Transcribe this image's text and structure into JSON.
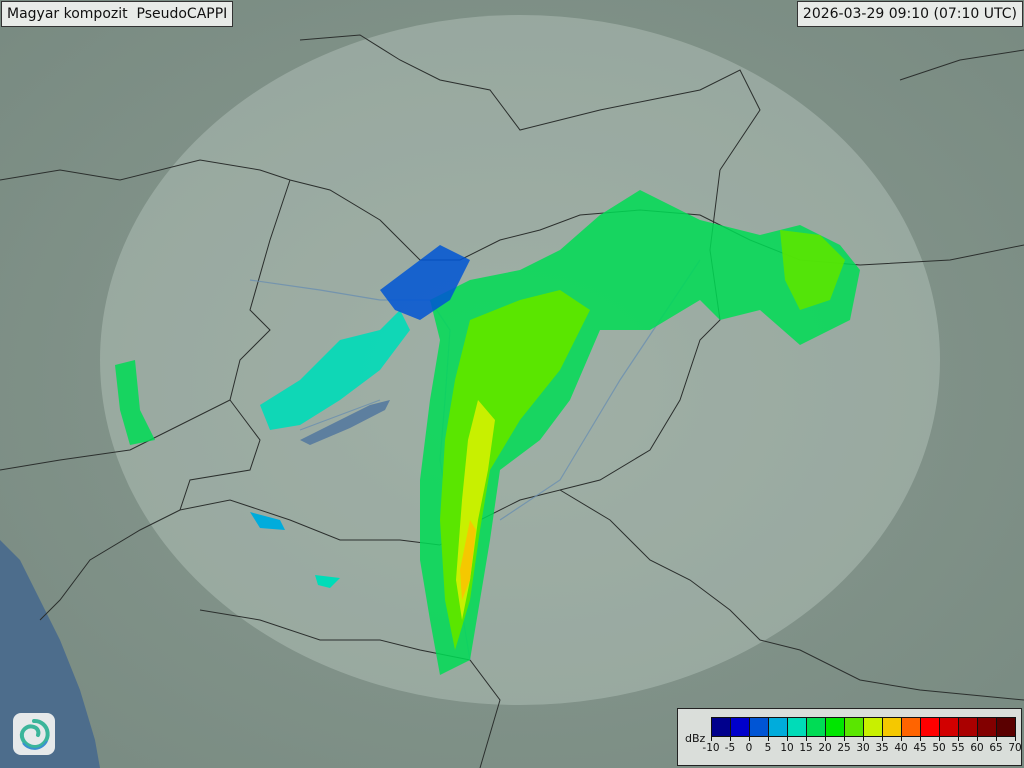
{
  "header": {
    "title": "Magyar kompozit  PseudoCAPPI",
    "timestamp": "2026-03-29 09:10 (07:10 UTC)"
  },
  "legend": {
    "unit": "dBz",
    "ticks": [
      "-10",
      "-5",
      "0",
      "5",
      "10",
      "15",
      "20",
      "25",
      "30",
      "35",
      "40",
      "45",
      "50",
      "55",
      "60",
      "65",
      "70"
    ],
    "colors": [
      "#00008c",
      "#0000cc",
      "#0055d5",
      "#00acdc",
      "#00dcb8",
      "#00dc55",
      "#00e600",
      "#5ae600",
      "#c8f000",
      "#f5c800",
      "#ff6400",
      "#ff0000",
      "#d20000",
      "#aa0000",
      "#820000",
      "#5a0000"
    ]
  },
  "map": {
    "land_color": "#7d8f86",
    "coverage_color": "#c9d6cf",
    "sea_color": "#4d6d8c",
    "logo_icon": "swirl-logo-icon"
  }
}
